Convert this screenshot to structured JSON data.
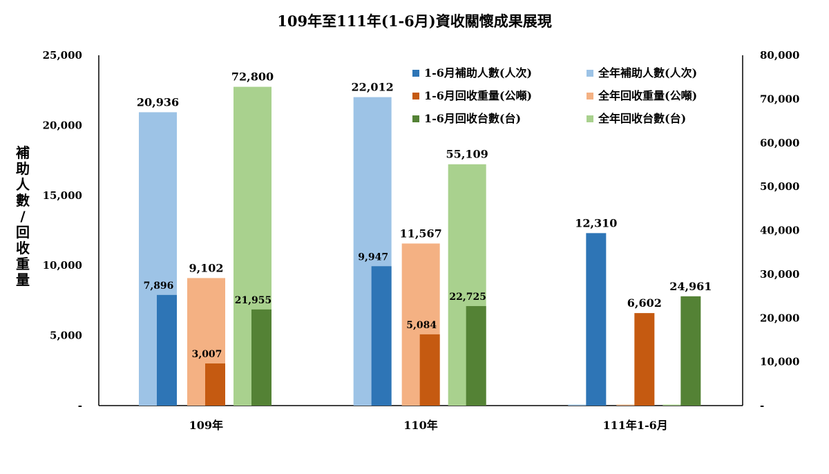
{
  "chart_data": {
    "type": "bar",
    "title": "109年至111年(1-6月)資收關懷成果展現",
    "ylabel": "補助人數/回收重量",
    "y2label": "",
    "categories": [
      "109年",
      "110年",
      "111年1-6月"
    ],
    "ylim": [
      0,
      25000
    ],
    "y2lim": [
      0,
      80000
    ],
    "yticks": [
      "-",
      "5,000",
      "10,000",
      "15,000",
      "20,000",
      "25,000"
    ],
    "y2ticks": [
      "-",
      "10,000",
      "20,000",
      "30,000",
      "40,000",
      "50,000",
      "60,000",
      "70,000",
      "80,000"
    ],
    "legend_position": "top-right",
    "grid": false,
    "series": [
      {
        "name": "全年補助人數(人次)",
        "axis": "left",
        "color": "#9DC3E6",
        "values": [
          20936,
          22012,
          0
        ],
        "labels": [
          "20,936",
          "22,012",
          ""
        ]
      },
      {
        "name": "1-6月補助人數(人次)",
        "axis": "left",
        "color": "#2E75B6",
        "values": [
          7896,
          9947,
          12310
        ],
        "labels": [
          "7,896",
          "9,947",
          "12,310"
        ]
      },
      {
        "name": "全年回收重量(公噸)",
        "axis": "left",
        "color": "#F4B183",
        "values": [
          9102,
          11567,
          0
        ],
        "labels": [
          "9,102",
          "11,567",
          ""
        ]
      },
      {
        "name": "1-6月回收重量(公噸)",
        "axis": "left",
        "color": "#C55A11",
        "values": [
          3007,
          5084,
          6602
        ],
        "labels": [
          "3,007",
          "5,084",
          "6,602"
        ]
      },
      {
        "name": "全年回收台數(台)",
        "axis": "right",
        "color": "#A9D18E",
        "values": [
          72800,
          55109,
          0
        ],
        "labels": [
          "72,800",
          "55,109",
          ""
        ]
      },
      {
        "name": "1-6月回收台數(台)",
        "axis": "right",
        "color": "#548235",
        "values": [
          21955,
          22725,
          24961
        ],
        "labels": [
          "21,955",
          "22,725",
          "24,961"
        ]
      }
    ],
    "legend": [
      {
        "name": "1-6月補助人數(人次)",
        "color": "#2E75B6"
      },
      {
        "name": "全年補助人數(人次)",
        "color": "#9DC3E6"
      },
      {
        "name": "1-6月回收重量(公噸)",
        "color": "#C55A11"
      },
      {
        "name": "全年回收重量(公噸)",
        "color": "#F4B183"
      },
      {
        "name": "1-6月回收台數(台)",
        "color": "#548235"
      },
      {
        "name": "全年回收台數(台)",
        "color": "#A9D18E"
      }
    ]
  }
}
